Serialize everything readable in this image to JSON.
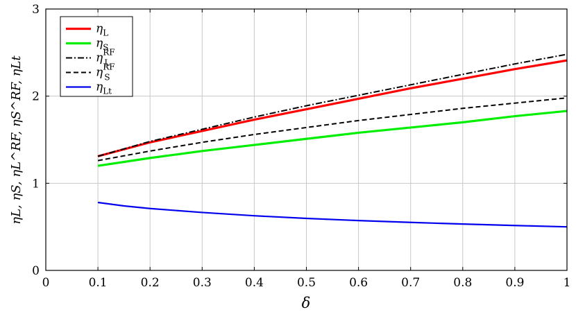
{
  "chart_data": {
    "type": "line",
    "xlabel": "δ",
    "ylabel": "ηL, ηS, ηL^RF, ηS^RF, ηLt",
    "xlim": [
      0,
      1
    ],
    "ylim": [
      0,
      3
    ],
    "xticks": [
      0,
      0.1,
      0.2,
      0.3,
      0.4,
      0.5,
      0.6,
      0.7,
      0.8,
      0.9,
      1
    ],
    "xtick_labels": [
      "0",
      "0.1",
      "0.2",
      "0.3",
      "0.4",
      "0.5",
      "0.6",
      "0.7",
      "0.8",
      "0.9",
      "1"
    ],
    "yticks": [
      0,
      1,
      2,
      3
    ],
    "ytick_labels": [
      "0",
      "1",
      "2",
      "3"
    ],
    "grid": true,
    "legend_position": "top-left",
    "series": [
      {
        "name": "ηL",
        "color": "#ff0000",
        "style": "solid-thick",
        "x": [
          0.1,
          0.2,
          0.3,
          0.4,
          0.5,
          0.6,
          0.7,
          0.8,
          0.9,
          1.0
        ],
        "y": [
          1.31,
          1.47,
          1.6,
          1.73,
          1.85,
          1.97,
          2.09,
          2.2,
          2.31,
          2.41
        ]
      },
      {
        "name": "ηS",
        "color": "#00ee00",
        "style": "solid-thick",
        "x": [
          0.1,
          0.2,
          0.3,
          0.4,
          0.5,
          0.6,
          0.7,
          0.8,
          0.9,
          1.0
        ],
        "y": [
          1.2,
          1.29,
          1.37,
          1.44,
          1.51,
          1.58,
          1.64,
          1.7,
          1.77,
          1.83
        ]
      },
      {
        "name": "ηL^RF",
        "color": "#000000",
        "style": "dashdot",
        "x": [
          0.1,
          0.2,
          0.3,
          0.4,
          0.5,
          0.6,
          0.7,
          0.8,
          0.9,
          1.0
        ],
        "y": [
          1.31,
          1.48,
          1.62,
          1.76,
          1.89,
          2.01,
          2.13,
          2.25,
          2.37,
          2.48
        ]
      },
      {
        "name": "ηS^RF",
        "color": "#000000",
        "style": "dashed",
        "x": [
          0.1,
          0.2,
          0.3,
          0.4,
          0.5,
          0.6,
          0.7,
          0.8,
          0.9,
          1.0
        ],
        "y": [
          1.26,
          1.37,
          1.47,
          1.56,
          1.64,
          1.72,
          1.79,
          1.86,
          1.92,
          1.98
        ]
      },
      {
        "name": "ηLt",
        "color": "#0000ee",
        "style": "solid",
        "x": [
          0.1,
          0.15,
          0.2,
          0.3,
          0.4,
          0.5,
          0.6,
          0.7,
          0.8,
          0.9,
          1.0
        ],
        "y": [
          0.78,
          0.74,
          0.71,
          0.665,
          0.627,
          0.597,
          0.572,
          0.551,
          0.532,
          0.515,
          0.5
        ]
      }
    ],
    "legend": [
      {
        "base": "η",
        "sub": "L",
        "sup": "",
        "series": 0
      },
      {
        "base": "η",
        "sub": "S",
        "sup": "",
        "series": 1
      },
      {
        "base": "η",
        "sub": "L",
        "sup": "RF",
        "series": 2
      },
      {
        "base": "η",
        "sub": "S",
        "sup": "RF",
        "series": 3
      },
      {
        "base": "η",
        "sub": "Lt",
        "sup": "",
        "series": 4
      }
    ]
  }
}
